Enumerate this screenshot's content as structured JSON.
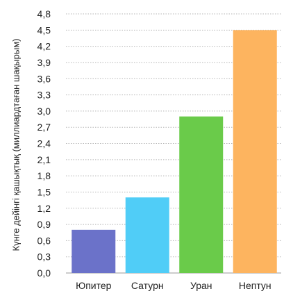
{
  "chart_data": {
    "type": "bar",
    "title": "",
    "xlabel": "",
    "ylabel": "Күнге дейінгі қашықтық (миллиардтаған шақырым)",
    "categories": [
      "Юпитер",
      "Сатурн",
      "Уран",
      "Нептун"
    ],
    "values": [
      0.8,
      1.4,
      2.9,
      4.5
    ],
    "colors": [
      "#6b72c9",
      "#50cdf7",
      "#6acb4a",
      "#fdb45f"
    ],
    "ylim": [
      0,
      4.8
    ],
    "yticks": [
      "0,0",
      "0,3",
      "0,6",
      "0,9",
      "1,2",
      "1,5",
      "1,8",
      "2,1",
      "2,4",
      "2,7",
      "3,0",
      "3,3",
      "3,6",
      "3,9",
      "4,2",
      "4,5",
      "4,8"
    ],
    "grid": true
  }
}
